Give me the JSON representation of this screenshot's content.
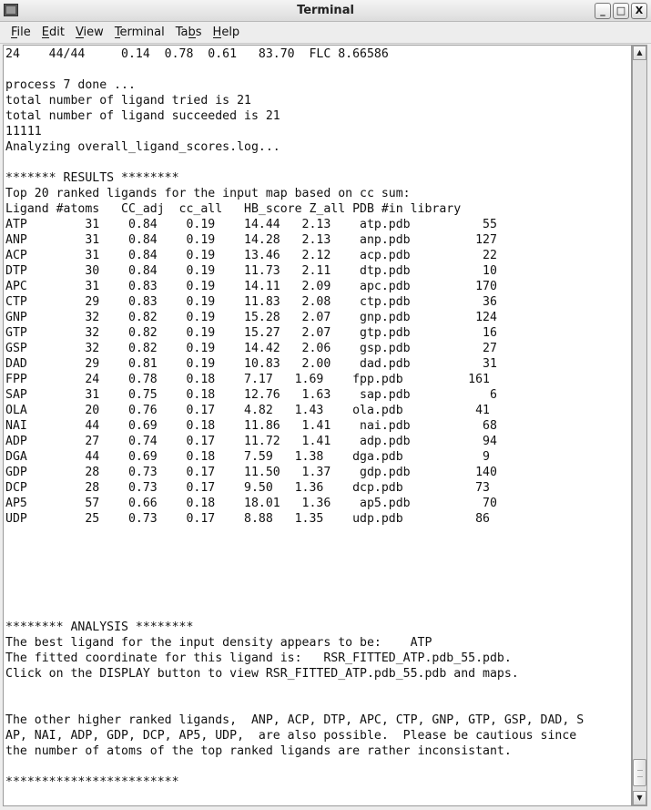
{
  "window": {
    "title": "Terminal"
  },
  "menu": [
    {
      "label": "File",
      "mnemonic": "F",
      "rest": "ile"
    },
    {
      "label": "Edit",
      "mnemonic": "E",
      "rest": "dit"
    },
    {
      "label": "View",
      "mnemonic": "V",
      "rest": "iew"
    },
    {
      "label": "Terminal",
      "mnemonic": "T",
      "rest": "erminal"
    },
    {
      "label": "Tabs",
      "mnemonic": "",
      "pre": "Ta",
      "mn2": "b",
      "rest": "s"
    },
    {
      "label": "Help",
      "mnemonic": "H",
      "rest": "elp"
    }
  ],
  "terminal": {
    "pre_lines": [
      "24    44/44     0.14  0.78  0.61   83.70  FLC 8.66586",
      "",
      "process 7 done ...",
      "total number of ligand tried is 21",
      "total number of ligand succeeded is 21",
      "11111",
      "Analyzing overall_ligand_scores.log...",
      "",
      "******* RESULTS ********",
      "Top 20 ranked ligands for the input map based on cc sum:",
      "Ligand #atoms   CC_adj  cc_all   HB_score Z_all PDB #in library"
    ],
    "ligands": [
      [
        "ATP",
        "31",
        "0.84",
        "0.19",
        "14.44",
        "2.13",
        "atp.pdb",
        "55"
      ],
      [
        "ANP",
        "31",
        "0.84",
        "0.19",
        "14.28",
        "2.13",
        "anp.pdb",
        "127"
      ],
      [
        "ACP",
        "31",
        "0.84",
        "0.19",
        "13.46",
        "2.12",
        "acp.pdb",
        "22"
      ],
      [
        "DTP",
        "30",
        "0.84",
        "0.19",
        "11.73",
        "2.11",
        "dtp.pdb",
        "10"
      ],
      [
        "APC",
        "31",
        "0.83",
        "0.19",
        "14.11",
        "2.09",
        "apc.pdb",
        "170"
      ],
      [
        "CTP",
        "29",
        "0.83",
        "0.19",
        "11.83",
        "2.08",
        "ctp.pdb",
        "36"
      ],
      [
        "GNP",
        "32",
        "0.82",
        "0.19",
        "15.28",
        "2.07",
        "gnp.pdb",
        "124"
      ],
      [
        "GTP",
        "32",
        "0.82",
        "0.19",
        "15.27",
        "2.07",
        "gtp.pdb",
        "16"
      ],
      [
        "GSP",
        "32",
        "0.82",
        "0.19",
        "14.42",
        "2.06",
        "gsp.pdb",
        "27"
      ],
      [
        "DAD",
        "29",
        "0.81",
        "0.19",
        "10.83",
        "2.00",
        "dad.pdb",
        "31"
      ],
      [
        "FPP",
        "24",
        "0.78",
        "0.18",
        "7.17",
        "1.69",
        "fpp.pdb",
        "161"
      ],
      [
        "SAP",
        "31",
        "0.75",
        "0.18",
        "12.76",
        "1.63",
        "sap.pdb",
        "6"
      ],
      [
        "OLA",
        "20",
        "0.76",
        "0.17",
        "4.82",
        "1.43",
        "ola.pdb",
        "41"
      ],
      [
        "NAI",
        "44",
        "0.69",
        "0.18",
        "11.86",
        "1.41",
        "nai.pdb",
        "68"
      ],
      [
        "ADP",
        "27",
        "0.74",
        "0.17",
        "11.72",
        "1.41",
        "adp.pdb",
        "94"
      ],
      [
        "DGA",
        "44",
        "0.69",
        "0.18",
        "7.59",
        "1.38",
        "dga.pdb",
        "9"
      ],
      [
        "GDP",
        "28",
        "0.73",
        "0.17",
        "11.50",
        "1.37",
        "gdp.pdb",
        "140"
      ],
      [
        "DCP",
        "28",
        "0.73",
        "0.17",
        "9.50",
        "1.36",
        "dcp.pdb",
        "73"
      ],
      [
        "AP5",
        "57",
        "0.66",
        "0.18",
        "18.01",
        "1.36",
        "ap5.pdb",
        "70"
      ],
      [
        "UDP",
        "25",
        "0.73",
        "0.17",
        "8.88",
        "1.35",
        "udp.pdb",
        "86"
      ]
    ],
    "post_lines": [
      "",
      "",
      "",
      "",
      "",
      "",
      "******** ANALYSIS ********",
      "The best ligand for the input density appears to be:    ATP",
      "The fitted coordinate for this ligand is:   RSR_FITTED_ATP.pdb_55.pdb.",
      "Click on the DISPLAY button to view RSR_FITTED_ATP.pdb_55.pdb and maps.",
      "",
      "",
      "The other higher ranked ligands,  ANP, ACP, DTP, APC, CTP, GNP, GTP, GSP, DAD, S",
      "AP, NAI, ADP, GDP, DCP, AP5, UDP,  are also possible.  Please be cautious since",
      "the number of atoms of the top ranked ligands are rather inconsistant.",
      "",
      "************************"
    ]
  },
  "scrollbar": {
    "position_percent": 97
  }
}
